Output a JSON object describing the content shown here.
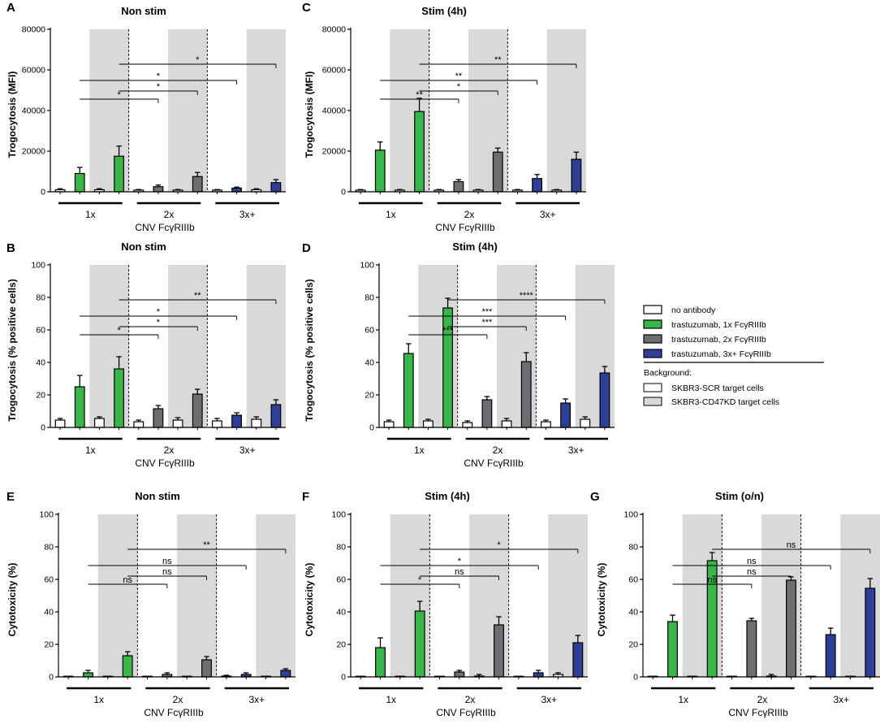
{
  "colors": {
    "none": "#ffffff",
    "g1": "#3ab54a",
    "g2": "#6d6e71",
    "g3": "#2e3f97",
    "shade": "#d9d9d9"
  },
  "legend": {
    "items": [
      "no antibody",
      "trastuzumab, 1x FcγRIIIb",
      "trastuzumab, 2x FcγRIIIb",
      "trastuzumab, 3x+ FcγRIIIb"
    ],
    "background_title": "Background:",
    "background_items": [
      "SKBR3-SCR target cells",
      "SKBR3-CD47KD target cells"
    ]
  },
  "chart_data": [
    {
      "id": "A",
      "type": "bar",
      "panel_label": "A",
      "title": "Non stim",
      "ylabel": "Trogocytosis (MFI)",
      "xlabel": "CNV FcγRIIIb",
      "ylim": [
        0,
        80000
      ],
      "yticks": [
        "0",
        "20000",
        "40000",
        "60000",
        "80000"
      ],
      "groups": [
        "1x",
        "2x",
        "3x+"
      ],
      "values": [
        1000,
        9000,
        1000,
        17500,
        800,
        2500,
        800,
        7500,
        800,
        1800,
        1000,
        4500
      ],
      "errors": [
        500,
        3000,
        500,
        5000,
        300,
        800,
        300,
        2000,
        300,
        500,
        500,
        1500
      ],
      "comparisons": [
        {
          "from": 1,
          "to": 5,
          "label": "*"
        },
        {
          "from": 1,
          "to": 9,
          "label": "*"
        },
        {
          "from": 3,
          "to": 7,
          "label": "*"
        },
        {
          "from": 3,
          "to": 11,
          "label": "*"
        }
      ]
    },
    {
      "id": "C",
      "type": "bar",
      "panel_label": "C",
      "title": "Stim (4h)",
      "ylabel": "Trogocytosis (MFI)",
      "xlabel": "CNV FcγRIIIb",
      "ylim": [
        0,
        80000
      ],
      "yticks": [
        "0",
        "20000",
        "40000",
        "60000",
        "80000"
      ],
      "groups": [
        "1x",
        "2x",
        "3x+"
      ],
      "values": [
        800,
        20500,
        800,
        39500,
        800,
        5000,
        800,
        19500,
        800,
        6500,
        800,
        16000
      ],
      "errors": [
        300,
        4000,
        300,
        6500,
        300,
        1000,
        300,
        2000,
        300,
        2000,
        300,
        3500
      ],
      "comparisons": [
        {
          "from": 1,
          "to": 5,
          "label": "**"
        },
        {
          "from": 1,
          "to": 9,
          "label": "**"
        },
        {
          "from": 3,
          "to": 7,
          "label": "*"
        },
        {
          "from": 3,
          "to": 11,
          "label": "**"
        }
      ]
    },
    {
      "id": "B",
      "type": "bar",
      "panel_label": "B",
      "title": "Non stim",
      "ylabel": "Trogocytosis (% positive cells)",
      "xlabel": "CNV FcγRIIIb",
      "ylim": [
        0,
        100
      ],
      "yticks": [
        "0",
        "20",
        "40",
        "60",
        "80",
        "100"
      ],
      "groups": [
        "1x",
        "2x",
        "3x+"
      ],
      "values": [
        4.5,
        25,
        5.5,
        36,
        3.5,
        11.5,
        4.5,
        20.5,
        4,
        7.5,
        5,
        14
      ],
      "errors": [
        1,
        7,
        1,
        7.5,
        1,
        2,
        1.5,
        3,
        1.5,
        1.5,
        1.5,
        3
      ],
      "comparisons": [
        {
          "from": 1,
          "to": 5,
          "label": "*"
        },
        {
          "from": 1,
          "to": 9,
          "label": "*"
        },
        {
          "from": 3,
          "to": 7,
          "label": "*"
        },
        {
          "from": 3,
          "to": 11,
          "label": "**"
        }
      ]
    },
    {
      "id": "D",
      "type": "bar",
      "panel_label": "D",
      "title": "Stim (4h)",
      "ylabel": "Trogocytosis (% positive cells)",
      "xlabel": "CNV FcγRIIIb",
      "ylim": [
        0,
        100
      ],
      "yticks": [
        "0",
        "20",
        "40",
        "60",
        "80",
        "100"
      ],
      "groups": [
        "1x",
        "2x",
        "3x+"
      ],
      "values": [
        3.5,
        45.5,
        4,
        73.5,
        3,
        17,
        4,
        40.5,
        3.5,
        15,
        5,
        33.5
      ],
      "errors": [
        1,
        6,
        1,
        6,
        1,
        2,
        1.5,
        5.5,
        1,
        2.5,
        1.5,
        4
      ],
      "comparisons": [
        {
          "from": 1,
          "to": 5,
          "label": "***"
        },
        {
          "from": 1,
          "to": 9,
          "label": "***"
        },
        {
          "from": 3,
          "to": 7,
          "label": "***"
        },
        {
          "from": 3,
          "to": 11,
          "label": "****"
        }
      ]
    },
    {
      "id": "E",
      "type": "bar",
      "panel_label": "E",
      "title": "Non stim",
      "ylabel": "Cytotoxicity (%)",
      "xlabel": "CNV FcγRIIIb",
      "ylim": [
        0,
        100
      ],
      "yticks": [
        "0",
        "20",
        "40",
        "60",
        "80",
        "100"
      ],
      "groups": [
        "1x",
        "2x",
        "3x+"
      ],
      "values": [
        0,
        2.5,
        0,
        13,
        0,
        1.5,
        0,
        10.5,
        0.5,
        1.5,
        0,
        4
      ],
      "errors": [
        0.3,
        1.5,
        0.3,
        2.5,
        0.3,
        1,
        0.3,
        2,
        0.5,
        1,
        0.3,
        1
      ],
      "comparisons": [
        {
          "from": 1,
          "to": 5,
          "label": "ns"
        },
        {
          "from": 1,
          "to": 9,
          "label": "ns"
        },
        {
          "from": 3,
          "to": 7,
          "label": "ns"
        },
        {
          "from": 3,
          "to": 11,
          "label": "**"
        }
      ]
    },
    {
      "id": "F",
      "type": "bar",
      "panel_label": "F",
      "title": "Stim (4h)",
      "ylabel": "Cytotoxicity (%)",
      "xlabel": "CNV FcγRIIIb",
      "ylim": [
        0,
        100
      ],
      "yticks": [
        "0",
        "20",
        "40",
        "60",
        "80",
        "100"
      ],
      "groups": [
        "1x",
        "2x",
        "3x+"
      ],
      "values": [
        0,
        18,
        0,
        40.5,
        0,
        3,
        0.5,
        32,
        0,
        2.5,
        1.5,
        21
      ],
      "errors": [
        0.3,
        6,
        0.3,
        6,
        0.3,
        1,
        1,
        5,
        0.3,
        1.5,
        1,
        4.5
      ],
      "comparisons": [
        {
          "from": 1,
          "to": 5,
          "label": "*"
        },
        {
          "from": 1,
          "to": 9,
          "label": "*"
        },
        {
          "from": 3,
          "to": 7,
          "label": "ns"
        },
        {
          "from": 3,
          "to": 11,
          "label": "*"
        }
      ]
    },
    {
      "id": "G",
      "type": "bar",
      "panel_label": "G",
      "title": "Stim (o/n)",
      "ylabel": "Cytotoxicity (%)",
      "xlabel": "CNV FcγRIIIb",
      "ylim": [
        0,
        100
      ],
      "yticks": [
        "0",
        "20",
        "40",
        "60",
        "80",
        "100"
      ],
      "groups": [
        "1x",
        "2x",
        "3x+"
      ],
      "values": [
        0,
        34,
        0,
        71.5,
        0,
        34.5,
        0.5,
        59.5,
        0,
        26,
        0,
        54.5
      ],
      "errors": [
        0.3,
        4,
        0.3,
        5,
        0.3,
        1.5,
        1,
        2,
        0.3,
        4,
        0.3,
        6
      ],
      "comparisons": [
        {
          "from": 1,
          "to": 5,
          "label": "ns"
        },
        {
          "from": 1,
          "to": 9,
          "label": "ns"
        },
        {
          "from": 3,
          "to": 7,
          "label": "ns"
        },
        {
          "from": 3,
          "to": 11,
          "label": "ns"
        }
      ]
    }
  ]
}
